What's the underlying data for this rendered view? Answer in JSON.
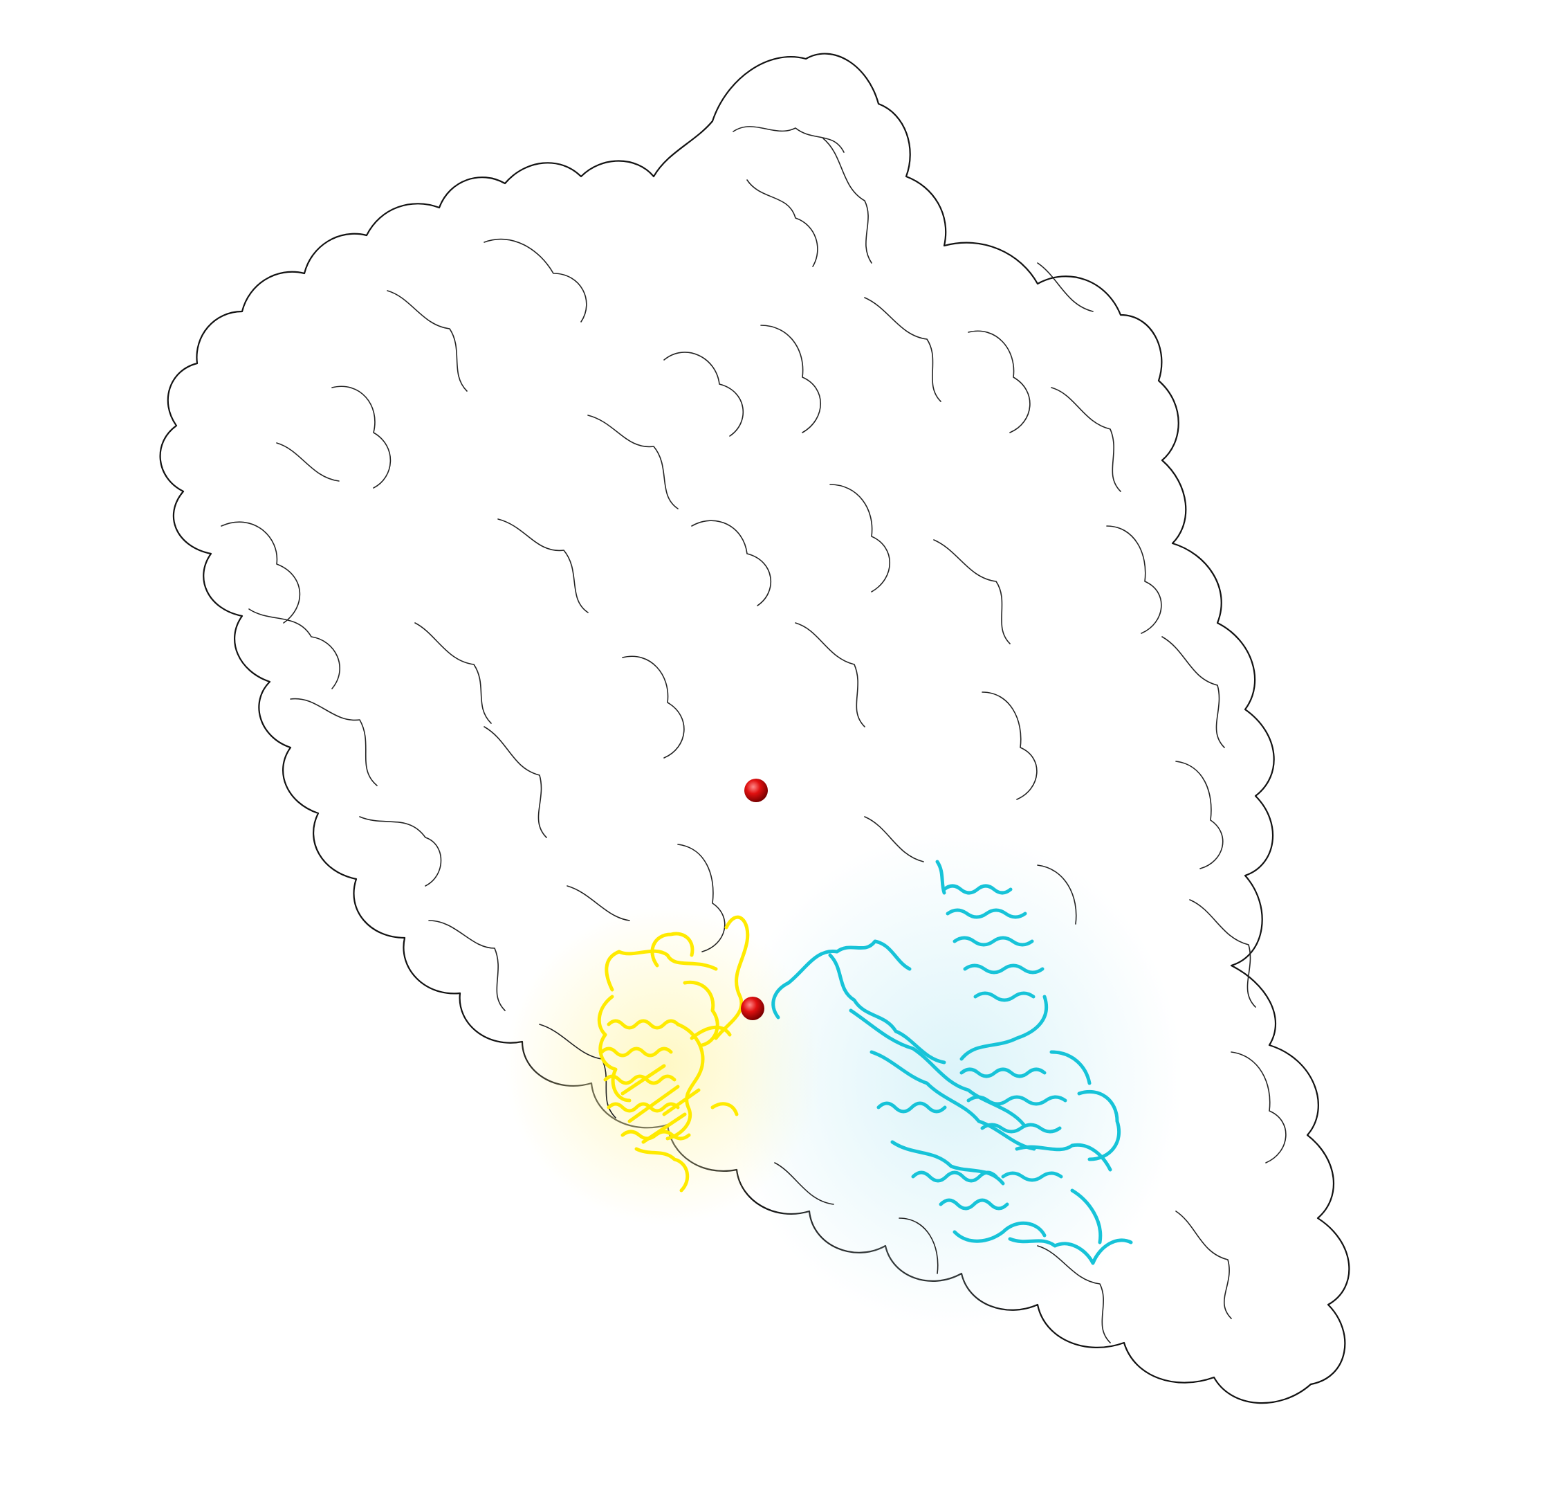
{
  "figure": {
    "background_color": "#ffffff",
    "surface_fill_color": "#ffffff",
    "surface_outline_color": "#111111",
    "domain_a": {
      "color": "#ffea00",
      "halo_color": "#fff6b0"
    },
    "domain_b": {
      "color": "#17c3d8",
      "halo_color": "#d2f1f8"
    },
    "marker_color": "#e01010",
    "marker_count": 2
  }
}
